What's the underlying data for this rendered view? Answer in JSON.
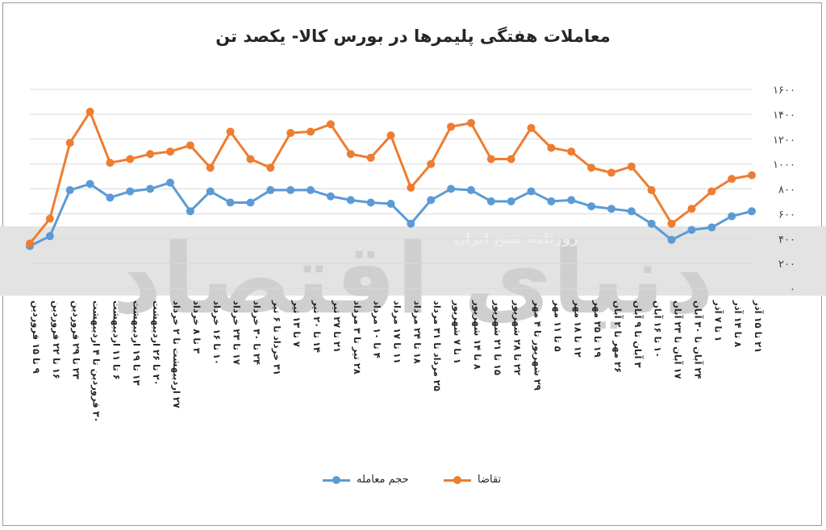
{
  "watermark": {
    "big_text": "دنیای اقتصاد",
    "label": "روزنامه صبح ایران"
  },
  "colors": {
    "volume": "#5b9bd5",
    "demand": "#ed7d31"
  },
  "chart_data": {
    "type": "line",
    "title": "معاملات هفتگی پلیمرها در بورس کالا- یکصد تن",
    "ylim": [
      0,
      1600
    ],
    "y_ticks": [
      "۱۶۰۰",
      "۱۴۰۰",
      "۱۲۰۰",
      "۱۰۰۰",
      "۸۰۰",
      "۶۰۰",
      "۴۰۰",
      "۲۰۰",
      "۰"
    ],
    "y_tick_values": [
      1600,
      1400,
      1200,
      1000,
      800,
      600,
      400,
      200,
      0
    ],
    "y_axis_side": "right",
    "x_reversed": true,
    "grid": true,
    "legend_position": "bottom",
    "categories": [
      "۲۱ تا ۱۵ آذر",
      "۸ تا ۱۴ آذر",
      "۱ تا ۷ آذر",
      "۲۴ آبان تا ۳۰ آبان",
      "۱۷ آبان تا ۲۳ آبان",
      "۱۰ تا ۱۶ آبان",
      "۳ آبان تا ۹ آبان",
      "۲۶ مهر تا ۲ آبان",
      "۱۹ تا ۲۵ مهر",
      "۱۲ تا ۱۸ مهر",
      "۵ تا ۱۱ مهر",
      "۲۹ شهریور تا ۴ مهر",
      "۲۲ تا ۲۸ شهریور",
      "۱۵ تا ۲۱ شهریور",
      "۸ تا ۱۴ شهریور",
      "۱ تا ۷ شهریور",
      "۲۵ مرداد تا ۳۱ مرداد",
      "۱۸ تا ۲۴ مرداد",
      "۱۱ تا ۱۷ مرداد",
      "۴ تا ۱۰ مرداد",
      "۲۸ تیر تا ۳ مرداد",
      "۲۱ تا ۲۷ تیر",
      "۱۴ تا ۲۰ تیر",
      "۷ تا ۱۳ تیر",
      "۳۱ خرداد تا ۶ تیر",
      "۲۴ تا ۳۰ خرداد",
      "۱۷ تا ۲۳ خرداد",
      "۱۰ تا ۱۶ خرداد",
      "۳ تا ۸ خرداد",
      "۲۷ اردیبهشت تا ۲ خرداد",
      "۲۰ تا ۲۶ اردیبهشت",
      "۱۳ تا ۱۹ اردیبهشت",
      "۶ تا ۱۱ اردیبهشت",
      "۳۰ فروردین تا ۴ اردیبهشت",
      "۲۳ تا ۲۹ فروردین",
      "۱۶ تا ۲۲ فروردین",
      "۹ تا ۱۵ فروردین"
    ],
    "series": [
      {
        "name": "حجم معامله",
        "color_key": "volume",
        "values": [
          620,
          580,
          490,
          470,
          390,
          520,
          620,
          640,
          660,
          710,
          700,
          780,
          700,
          700,
          790,
          800,
          710,
          520,
          680,
          690,
          710,
          740,
          790,
          790,
          790,
          690,
          690,
          780,
          620,
          850,
          800,
          780,
          730,
          840,
          790,
          420,
          340
        ]
      },
      {
        "name": "تقاضا",
        "color_key": "demand",
        "values": [
          910,
          880,
          780,
          640,
          520,
          790,
          980,
          930,
          970,
          1100,
          1130,
          1290,
          1040,
          1040,
          1330,
          1300,
          1000,
          810,
          1230,
          1050,
          1080,
          1320,
          1260,
          1250,
          970,
          1040,
          1260,
          970,
          1150,
          1100,
          1080,
          1040,
          1010,
          1420,
          1170,
          560,
          360
        ]
      }
    ]
  }
}
